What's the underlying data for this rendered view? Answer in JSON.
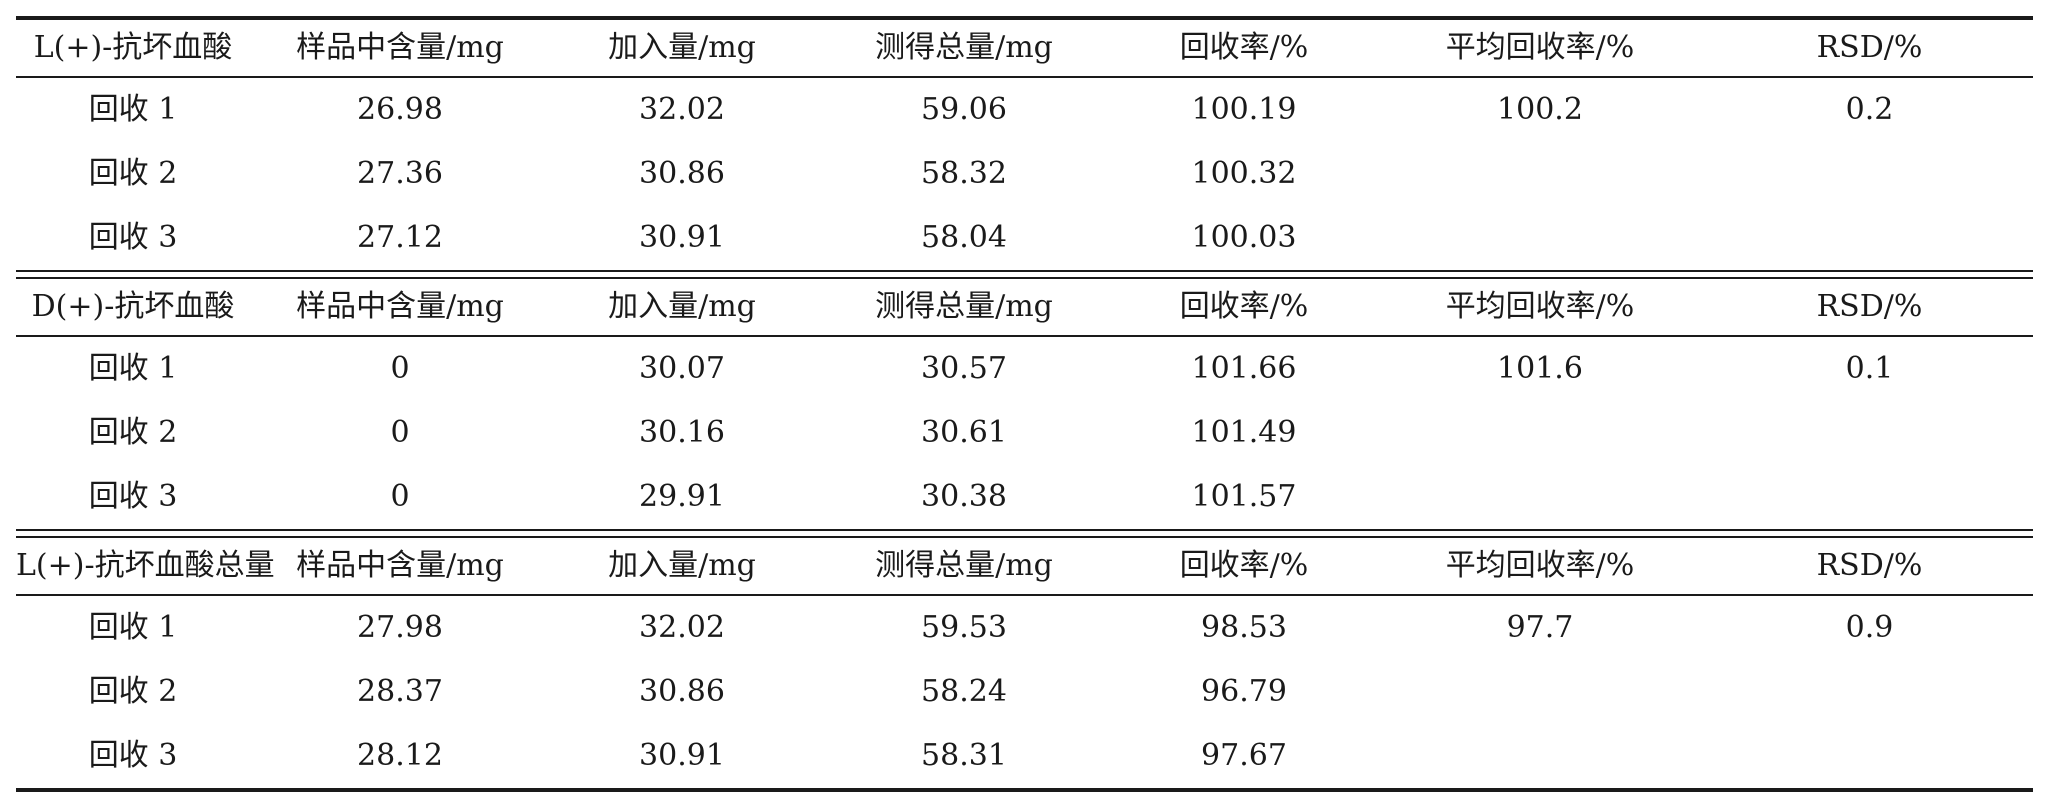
{
  "groups": [
    {
      "header": [
        "L(+)-抗坏血酸",
        "样品中含量/mg",
        "加入量/mg",
        "测得总量/mg",
        "回收率/%",
        "平均回收率/%",
        "RSD/%"
      ],
      "rows": [
        [
          "回收 1",
          "26.98",
          "32.02",
          "59.06",
          "100.19",
          "100.2",
          "0.2"
        ],
        [
          "回收 2",
          "27.36",
          "30.86",
          "58.32",
          "100.32",
          "",
          ""
        ],
        [
          "回收 3",
          "27.12",
          "30.91",
          "58.04",
          "100.03",
          "",
          ""
        ]
      ]
    },
    {
      "header": [
        "D(+)-抗坏血酸",
        "样品中含量/mg",
        "加入量/mg",
        "测得总量/mg",
        "回收率/%",
        "平均回收率/%",
        "RSD/%"
      ],
      "rows": [
        [
          "回收 1",
          "0",
          "30.07",
          "30.57",
          "101.66",
          "101.6",
          "0.1"
        ],
        [
          "回收 2",
          "0",
          "30.16",
          "30.61",
          "101.49",
          "",
          ""
        ],
        [
          "回收 3",
          "0",
          "29.91",
          "30.38",
          "101.57",
          "",
          ""
        ]
      ]
    },
    {
      "header": [
        "L(+)-抗坏血酸总量",
        "样品中含量/mg",
        "加入量/mg",
        "测得总量/mg",
        "回收率/%",
        "平均回收率/%",
        "RSD/%"
      ],
      "rows": [
        [
          "回收 1",
          "27.98",
          "32.02",
          "59.53",
          "98.53",
          "97.7",
          "0.9"
        ],
        [
          "回收 2",
          "28.37",
          "30.86",
          "58.24",
          "96.79",
          "",
          ""
        ],
        [
          "回收 3",
          "28.12",
          "30.91",
          "58.31",
          "97.67",
          "",
          ""
        ]
      ]
    }
  ]
}
